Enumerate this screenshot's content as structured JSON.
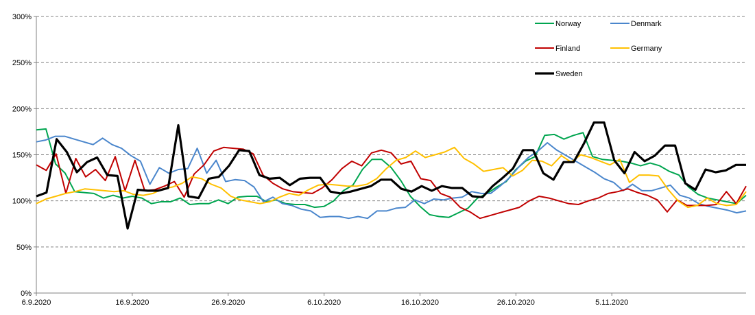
{
  "chart_data": {
    "type": "line",
    "title": "",
    "xlabel": "",
    "ylabel": "",
    "x_start": "2020-09-06",
    "x_end": "2020-11-19",
    "x_ticks": [
      "6.9.2020",
      "16.9.2020",
      "26.9.2020",
      "6.10.2020",
      "16.10.2020",
      "26.10.2020",
      "5.11.2020"
    ],
    "y_ticks": [
      "0%",
      "50%",
      "100%",
      "150%",
      "200%",
      "250%",
      "300%"
    ],
    "ylim": [
      0,
      300
    ],
    "grid": "horizontal dashed",
    "legend_position": "top-right",
    "series": [
      {
        "name": "Norway",
        "color": "#00a54f",
        "values": [
          177,
          178,
          140,
          130,
          110,
          109,
          108,
          103,
          106,
          103,
          105,
          103,
          97,
          99,
          99,
          103,
          96,
          97,
          97,
          101,
          97,
          104,
          105,
          105,
          99,
          101,
          97,
          96,
          96,
          93,
          94,
          100,
          111,
          117,
          134,
          145,
          145,
          136,
          122,
          105,
          94,
          85,
          83,
          82,
          87,
          92,
          103,
          108,
          115,
          121,
          134,
          143,
          148,
          171,
          172,
          167,
          171,
          174,
          148,
          145,
          144,
          143,
          141,
          138,
          141,
          138,
          132,
          128,
          115,
          107,
          103,
          101,
          99,
          97,
          106
        ]
      },
      {
        "name": "Denmark",
        "color": "#4a86cc",
        "values": [
          164,
          166,
          170,
          170,
          167,
          164,
          161,
          168,
          161,
          157,
          149,
          143,
          118,
          136,
          130,
          134,
          135,
          157,
          130,
          144,
          121,
          123,
          122,
          115,
          99,
          104,
          97,
          95,
          91,
          89,
          82,
          83,
          83,
          81,
          83,
          81,
          89,
          89,
          92,
          93,
          101,
          97,
          102,
          101,
          103,
          104,
          110,
          108,
          108,
          116,
          125,
          137,
          147,
          154,
          163,
          155,
          149,
          143,
          137,
          131,
          124,
          120,
          111,
          118,
          111,
          111,
          114,
          117,
          106,
          103,
          97,
          94,
          92,
          90,
          87,
          89
        ]
      },
      {
        "name": "Finland",
        "color": "#c00000",
        "values": [
          139,
          133,
          151,
          108,
          146,
          126,
          134,
          122,
          148,
          111,
          144,
          111,
          112,
          116,
          121,
          104,
          129,
          139,
          154,
          158,
          157,
          156,
          151,
          128,
          119,
          113,
          110,
          109,
          108,
          114,
          123,
          135,
          143,
          138,
          152,
          155,
          152,
          140,
          143,
          124,
          122,
          108,
          104,
          93,
          88,
          81,
          84,
          87,
          90,
          93,
          100,
          105,
          103,
          100,
          97,
          96,
          100,
          103,
          108,
          110,
          113,
          109,
          106,
          101,
          88,
          101,
          95,
          95,
          95,
          96,
          110,
          97,
          116
        ]
      },
      {
        "name": "Germany",
        "color": "#ffc000",
        "values": [
          97,
          102,
          105,
          108,
          110,
          113,
          112,
          111,
          110,
          111,
          107,
          106,
          108,
          113,
          115,
          119,
          126,
          124,
          118,
          114,
          105,
          101,
          99,
          97,
          99,
          104,
          108,
          106,
          112,
          117,
          118,
          117,
          116,
          116,
          118,
          124,
          135,
          144,
          147,
          154,
          147,
          150,
          153,
          158,
          146,
          140,
          132,
          134,
          136,
          127,
          133,
          144,
          143,
          138,
          149,
          142,
          150,
          147,
          143,
          139,
          145,
          120,
          128,
          128,
          127,
          112,
          100,
          93,
          95,
          103,
          97,
          95,
          96,
          110
        ]
      },
      {
        "name": "Sweden",
        "color": "#000000",
        "values": [
          105,
          109,
          167,
          153,
          131,
          142,
          147,
          128,
          127,
          70,
          112,
          111,
          111,
          114,
          182,
          105,
          103,
          124,
          126,
          138,
          155,
          154,
          128,
          124,
          125,
          117,
          124,
          125,
          125,
          110,
          108,
          110,
          113,
          116,
          123,
          123,
          113,
          110,
          116,
          111,
          116,
          114,
          114,
          105,
          104,
          116,
          125,
          135,
          155,
          155,
          130,
          123,
          142,
          142,
          162,
          185,
          185,
          144,
          130,
          153,
          143,
          149,
          160,
          160,
          119,
          112,
          134,
          131,
          133,
          139,
          139
        ]
      }
    ]
  }
}
